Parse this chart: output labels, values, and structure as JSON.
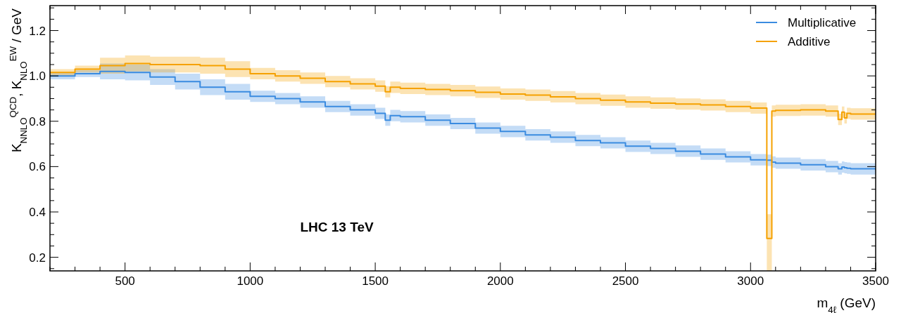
{
  "chart_data": {
    "type": "step",
    "xlabel": "m$_{4ℓ}$ (GeV)",
    "ylabel": "K$_{NNLO}$$^{QCD}$, K$_{NLO}$$^{EW}$ / GeV",
    "annotations": [
      "LHC 13 TeV"
    ],
    "x": [
      200,
      300,
      400,
      500,
      600,
      700,
      800,
      900,
      1000,
      1100,
      1200,
      1300,
      1400,
      1500,
      1540,
      1560,
      1600,
      1700,
      1800,
      1900,
      2000,
      2100,
      2200,
      2300,
      2400,
      2500,
      2600,
      2700,
      2800,
      2900,
      3000,
      3065,
      3085,
      3100,
      3200,
      3300,
      3350,
      3365,
      3375,
      3385,
      3400,
      3500
    ],
    "series": [
      {
        "name": "Multiplicative",
        "color": "#3a8be0",
        "values": [
          1.0,
          1.01,
          1.02,
          1.015,
          0.995,
          0.975,
          0.95,
          0.93,
          0.91,
          0.9,
          0.885,
          0.865,
          0.85,
          0.835,
          0.805,
          0.825,
          0.82,
          0.805,
          0.79,
          0.77,
          0.755,
          0.74,
          0.73,
          0.715,
          0.705,
          0.69,
          0.68,
          0.668,
          0.655,
          0.643,
          0.63,
          0.628,
          0.62,
          0.615,
          0.608,
          0.6,
          0.59,
          0.598,
          0.595,
          0.593,
          0.59,
          0.585
        ],
        "lower": [
          0.985,
          0.995,
          0.985,
          0.98,
          0.96,
          0.94,
          0.915,
          0.895,
          0.885,
          0.875,
          0.86,
          0.84,
          0.825,
          0.81,
          0.78,
          0.8,
          0.795,
          0.78,
          0.765,
          0.745,
          0.73,
          0.715,
          0.705,
          0.69,
          0.68,
          0.665,
          0.655,
          0.643,
          0.63,
          0.618,
          0.605,
          0.603,
          0.595,
          0.59,
          0.583,
          0.575,
          0.565,
          0.573,
          0.57,
          0.568,
          0.565,
          0.56
        ],
        "upper": [
          1.015,
          1.025,
          1.055,
          1.05,
          1.03,
          1.01,
          0.985,
          0.965,
          0.935,
          0.925,
          0.91,
          0.89,
          0.875,
          0.86,
          0.83,
          0.85,
          0.845,
          0.83,
          0.815,
          0.795,
          0.78,
          0.765,
          0.755,
          0.74,
          0.73,
          0.715,
          0.705,
          0.693,
          0.68,
          0.668,
          0.655,
          0.653,
          0.645,
          0.64,
          0.633,
          0.625,
          0.615,
          0.623,
          0.62,
          0.618,
          0.615,
          0.61
        ]
      },
      {
        "name": "Additive",
        "color": "#f5a100",
        "values": [
          1.015,
          1.03,
          1.045,
          1.055,
          1.05,
          1.05,
          1.045,
          1.03,
          1.01,
          1.0,
          0.99,
          0.975,
          0.965,
          0.955,
          0.93,
          0.95,
          0.945,
          0.94,
          0.935,
          0.928,
          0.92,
          0.915,
          0.908,
          0.9,
          0.893,
          0.885,
          0.88,
          0.876,
          0.872,
          0.865,
          0.858,
          0.283,
          0.845,
          0.848,
          0.85,
          0.845,
          0.808,
          0.84,
          0.815,
          0.835,
          0.832,
          0.833
        ],
        "lower": [
          1.0,
          1.015,
          1.01,
          1.02,
          1.015,
          1.015,
          1.01,
          0.995,
          0.985,
          0.975,
          0.965,
          0.95,
          0.94,
          0.93,
          0.905,
          0.925,
          0.92,
          0.915,
          0.91,
          0.903,
          0.895,
          0.89,
          0.883,
          0.875,
          0.868,
          0.86,
          0.855,
          0.851,
          0.847,
          0.84,
          0.833,
          0.14,
          0.82,
          0.823,
          0.825,
          0.82,
          0.783,
          0.815,
          0.79,
          0.81,
          0.807,
          0.808
        ],
        "upper": [
          1.03,
          1.045,
          1.08,
          1.09,
          1.085,
          1.085,
          1.08,
          1.065,
          1.035,
          1.025,
          1.015,
          1.0,
          0.99,
          0.98,
          0.955,
          0.975,
          0.97,
          0.965,
          0.96,
          0.953,
          0.945,
          0.94,
          0.933,
          0.925,
          0.918,
          0.91,
          0.905,
          0.901,
          0.897,
          0.89,
          0.883,
          0.39,
          0.87,
          0.873,
          0.875,
          0.87,
          0.833,
          0.865,
          0.84,
          0.86,
          0.857,
          0.858
        ]
      }
    ],
    "xlim": [
      200,
      3500
    ],
    "xticks": [
      {
        "value": 200,
        "label": null
      },
      {
        "value": 300,
        "label": null
      },
      {
        "value": 400,
        "label": null
      },
      500,
      {
        "value": 600,
        "label": null
      },
      {
        "value": 700,
        "label": null
      },
      {
        "value": 800,
        "label": null
      },
      {
        "value": 900,
        "label": null
      },
      1000,
      {
        "value": 1100,
        "label": null
      },
      {
        "value": 1200,
        "label": null
      },
      {
        "value": 1300,
        "label": null
      },
      {
        "value": 1400,
        "label": null
      },
      1500,
      {
        "value": 1600,
        "label": null
      },
      {
        "value": 1700,
        "label": null
      },
      {
        "value": 1800,
        "label": null
      },
      {
        "value": 1900,
        "label": null
      },
      2000,
      {
        "value": 2100,
        "label": null
      },
      {
        "value": 2200,
        "label": null
      },
      {
        "value": 2300,
        "label": null
      },
      {
        "value": 2400,
        "label": null
      },
      2500,
      {
        "value": 2600,
        "label": null
      },
      {
        "value": 2700,
        "label": null
      },
      {
        "value": 2800,
        "label": null
      },
      {
        "value": 2900,
        "label": null
      },
      3000,
      {
        "value": 3100,
        "label": null
      },
      {
        "value": 3200,
        "label": null
      },
      {
        "value": 3300,
        "label": null
      },
      {
        "value": 3400,
        "label": null
      },
      3500
    ],
    "ylim": [
      0.14,
      1.31
    ],
    "yticks": [
      {
        "value": 0.15,
        "label": null
      },
      {
        "value": 0.2,
        "label": "0.2"
      },
      {
        "value": 0.25,
        "label": null
      },
      {
        "value": 0.3,
        "label": null
      },
      {
        "value": 0.35,
        "label": null
      },
      {
        "value": 0.4,
        "label": "0.4"
      },
      {
        "value": 0.45,
        "label": null
      },
      {
        "value": 0.5,
        "label": null
      },
      {
        "value": 0.55,
        "label": null
      },
      {
        "value": 0.6,
        "label": "0.6"
      },
      {
        "value": 0.65,
        "label": null
      },
      {
        "value": 0.7,
        "label": null
      },
      {
        "value": 0.75,
        "label": null
      },
      {
        "value": 0.8,
        "label": "0.8"
      },
      {
        "value": 0.85,
        "label": null
      },
      {
        "value": 0.9,
        "label": null
      },
      {
        "value": 0.95,
        "label": null
      },
      {
        "value": 1.0,
        "label": "1.0"
      },
      {
        "value": 1.05,
        "label": null
      },
      {
        "value": 1.1,
        "label": null
      },
      {
        "value": 1.15,
        "label": null
      },
      {
        "value": 1.2,
        "label": "1.2"
      },
      {
        "value": 1.25,
        "label": null
      },
      {
        "value": 1.3,
        "label": null
      }
    ],
    "legend": "top right"
  }
}
